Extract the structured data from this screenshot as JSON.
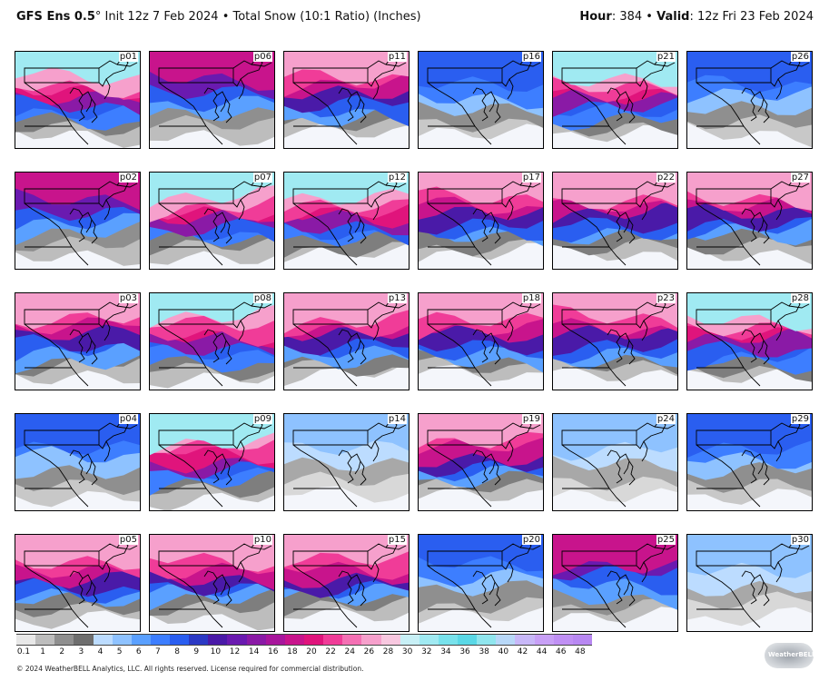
{
  "header": {
    "model": "GFS Ens 0.5",
    "degree_symbol": "°",
    "init_text": " Init 12z 7 Feb 2024 • Total Snow (10:1 Ratio) (Inches)",
    "hour_label": "Hour",
    "hour_value": ": 384 • ",
    "valid_label": "Valid",
    "valid_value": ": 12z Fri 23 Feb 2024"
  },
  "panels": [
    {
      "label": "p01",
      "level": 5
    },
    {
      "label": "p06",
      "level": 3
    },
    {
      "label": "p11",
      "level": 4
    },
    {
      "label": "p16",
      "level": 2
    },
    {
      "label": "p21",
      "level": 5
    },
    {
      "label": "p26",
      "level": 2
    },
    {
      "label": "p02",
      "level": 3
    },
    {
      "label": "p07",
      "level": 5
    },
    {
      "label": "p12",
      "level": 5
    },
    {
      "label": "p17",
      "level": 4
    },
    {
      "label": "p22",
      "level": 4
    },
    {
      "label": "p27",
      "level": 4
    },
    {
      "label": "p03",
      "level": 4
    },
    {
      "label": "p08",
      "level": 5
    },
    {
      "label": "p13",
      "level": 4
    },
    {
      "label": "p18",
      "level": 4
    },
    {
      "label": "p23",
      "level": 4
    },
    {
      "label": "p28",
      "level": 5
    },
    {
      "label": "p04",
      "level": 2
    },
    {
      "label": "p09",
      "level": 5
    },
    {
      "label": "p14",
      "level": 1
    },
    {
      "label": "p19",
      "level": 4
    },
    {
      "label": "p24",
      "level": 1
    },
    {
      "label": "p29",
      "level": 2
    },
    {
      "label": "p05",
      "level": 4
    },
    {
      "label": "p10",
      "level": 4
    },
    {
      "label": "p15",
      "level": 4
    },
    {
      "label": "p20",
      "level": 2
    },
    {
      "label": "p25",
      "level": 3
    },
    {
      "label": "p30",
      "level": 1
    }
  ],
  "colorbar": {
    "ticks": [
      "0.1",
      "1",
      "2",
      "3",
      "4",
      "5",
      "6",
      "7",
      "8",
      "9",
      "10",
      "12",
      "14",
      "16",
      "18",
      "20",
      "22",
      "24",
      "26",
      "28",
      "30",
      "32",
      "34",
      "36",
      "38",
      "40",
      "42",
      "44",
      "46",
      "48"
    ],
    "colors": [
      "#e8e8e8",
      "#bdbdbd",
      "#8f8f8f",
      "#6e6e6e",
      "#bcdcff",
      "#8ec2ff",
      "#5aa0ff",
      "#3d7eff",
      "#2a5ef0",
      "#2b39c4",
      "#4a1aa8",
      "#6a1ab0",
      "#8a1aa6",
      "#a8169c",
      "#c8148c",
      "#e0147c",
      "#f03c98",
      "#f470b4",
      "#f6a0cc",
      "#f8c8e0",
      "#c8f0f6",
      "#a0eaf2",
      "#78e2ec",
      "#5ad8e6",
      "#90e6ee",
      "#b8d8f8",
      "#c8b8f8",
      "#c8a0f6",
      "#c090f4",
      "#b888f2"
    ]
  },
  "copyright": "© 2024 WeatherBELL Analytics, LLC. All rights reserved. License required for commercial distribution.",
  "logo_text": "WeatherBELL"
}
